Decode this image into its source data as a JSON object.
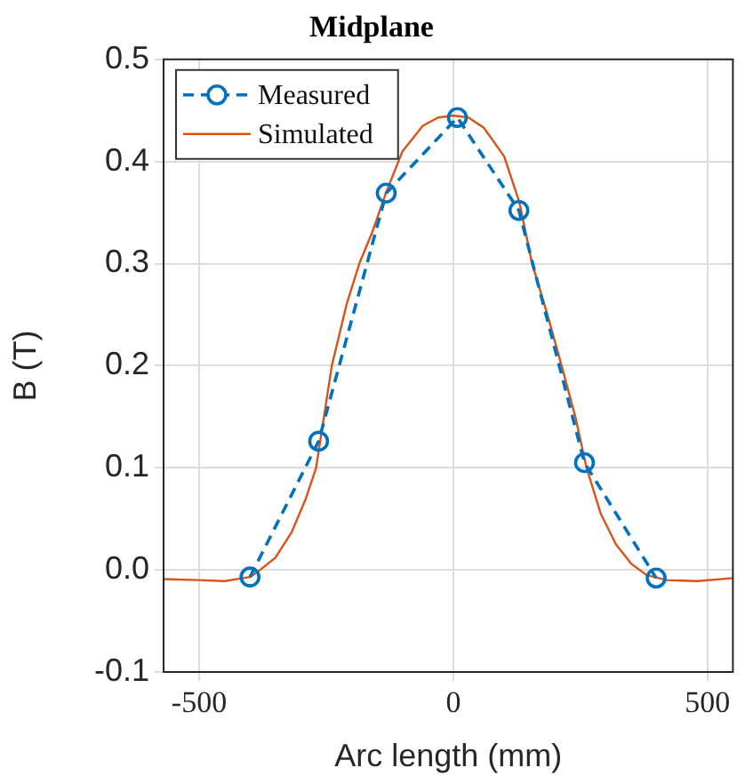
{
  "chart_data": {
    "type": "line",
    "title": "Midplane",
    "xlabel": "Arc length (mm)",
    "ylabel": "B (T)",
    "xlim": [
      -570,
      550
    ],
    "xticks": [
      -500,
      0,
      500
    ],
    "ylim": [
      -0.1,
      0.5
    ],
    "yticks": [
      -0.1,
      {
        "value": 0,
        "label": "0.0"
      },
      0.1,
      0.2,
      0.3,
      0.4,
      0.5
    ],
    "grid": true,
    "legend": "top left",
    "series": [
      {
        "name": "Measured",
        "color": "#0072bd",
        "marker": "circle",
        "line_style": "dashed",
        "x": [
          -400,
          -265,
          -132,
          8,
          129,
          258,
          399
        ],
        "values": [
          -0.007,
          0.126,
          0.369,
          0.443,
          0.352,
          0.105,
          -0.008
        ]
      },
      {
        "name": "Simulated",
        "color": "#d95319",
        "marker": "none",
        "line_style": "solid",
        "x": [
          -570,
          -500,
          -450,
          -400,
          -380,
          -350,
          -318,
          -290,
          -270,
          -239,
          -210,
          -185,
          -160,
          -132,
          -100,
          -60,
          -30,
          0,
          30,
          60,
          100,
          130,
          155,
          185,
          213,
          240,
          262,
          290,
          320,
          350,
          380,
          420,
          480,
          550
        ],
        "values": [
          -0.009,
          -0.01,
          -0.011,
          -0.007,
          0,
          0.012,
          0.037,
          0.07,
          0.1,
          0.2,
          0.26,
          0.3,
          0.33,
          0.37,
          0.41,
          0.435,
          0.443,
          0.445,
          0.443,
          0.433,
          0.405,
          0.36,
          0.3,
          0.25,
          0.2,
          0.15,
          0.1,
          0.055,
          0.025,
          0.006,
          -0.005,
          -0.01,
          -0.011,
          -0.008
        ]
      }
    ]
  }
}
